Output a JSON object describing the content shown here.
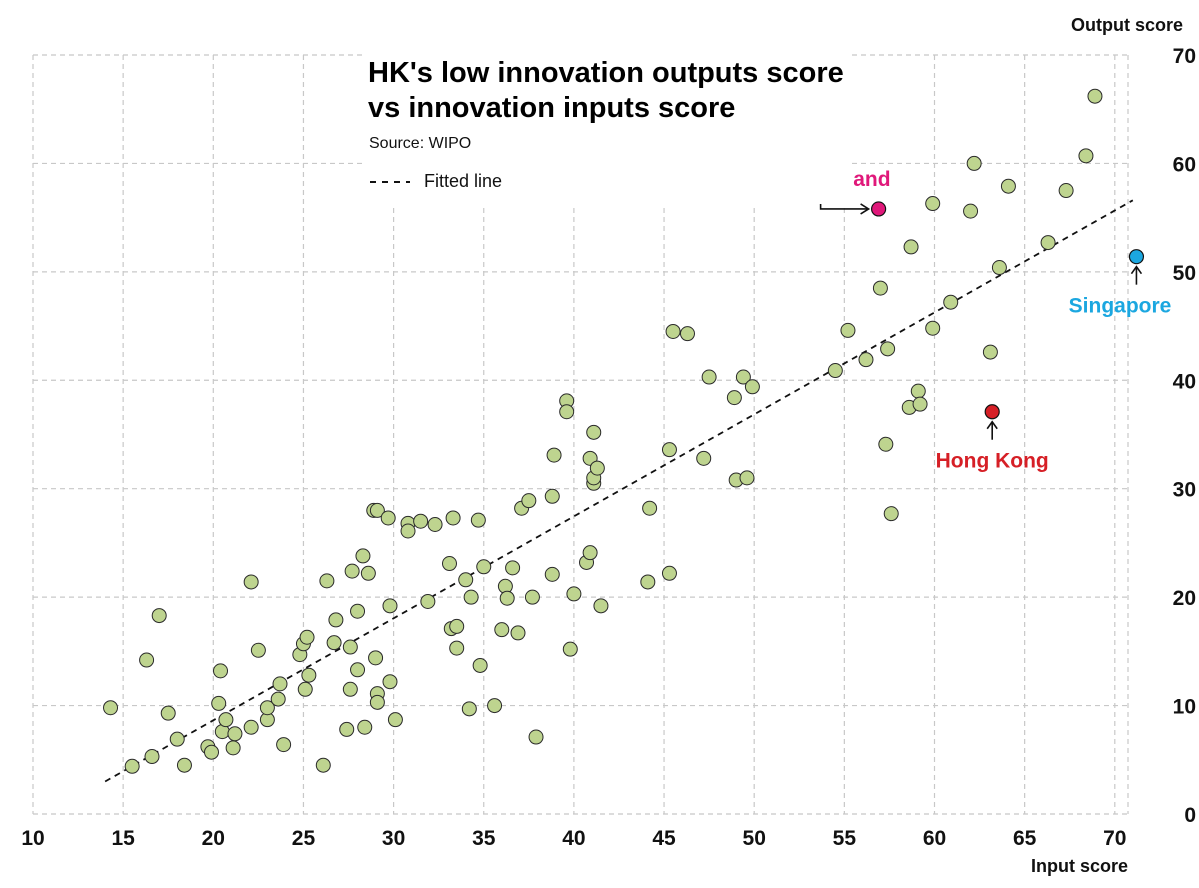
{
  "chart_data": {
    "type": "scatter",
    "title": "HK's low innovation outputs score",
    "subtitle": "vs innovation inputs score",
    "source": "Source: WIPO",
    "xlabel": "Input score",
    "ylabel": "Output score",
    "xlim": [
      10,
      72
    ],
    "ylim": [
      0,
      70
    ],
    "x_ticks": [
      10,
      15,
      20,
      25,
      30,
      35,
      40,
      45,
      50,
      55,
      60,
      65,
      70
    ],
    "y_ticks": [
      0,
      10,
      20,
      30,
      40,
      50,
      60,
      70
    ],
    "grid": true,
    "legend": {
      "label": "Fitted line",
      "placement": "top-left"
    },
    "colors": {
      "points": "#bed48f",
      "point_stroke": "#2a2a2a",
      "title": "#0d3b66",
      "fitted_line": "#111111",
      "grid": "#c8c8c8",
      "chinese_mainland": "#e0187a",
      "hong_kong": "#d61f26",
      "singapore": "#1ba7e0"
    },
    "fitted_line": {
      "x": [
        14,
        71
      ],
      "y": [
        3,
        56.6
      ]
    },
    "highlights": [
      {
        "name": "Chinese mainland",
        "x": 56.9,
        "y": 55.8,
        "color_key": "chinese_mainland",
        "arrow": "left"
      },
      {
        "name": "Hong Kong",
        "x": 63.2,
        "y": 37.1,
        "color_key": "hong_kong",
        "arrow": "below"
      },
      {
        "name": "Singapore",
        "x": 71.2,
        "y": 51.4,
        "color_key": "singapore",
        "arrow": "below"
      }
    ],
    "points": [
      [
        14.3,
        9.8
      ],
      [
        15.5,
        4.4
      ],
      [
        16.3,
        14.2
      ],
      [
        16.6,
        5.3
      ],
      [
        17.0,
        18.3
      ],
      [
        17.5,
        9.3
      ],
      [
        18.0,
        6.9
      ],
      [
        18.4,
        4.5
      ],
      [
        19.7,
        6.2
      ],
      [
        19.9,
        5.7
      ],
      [
        20.3,
        10.2
      ],
      [
        20.4,
        13.2
      ],
      [
        20.5,
        7.6
      ],
      [
        20.7,
        8.7
      ],
      [
        21.1,
        6.1
      ],
      [
        21.2,
        7.4
      ],
      [
        22.1,
        21.4
      ],
      [
        22.1,
        8.0
      ],
      [
        22.5,
        15.1
      ],
      [
        23.0,
        8.7
      ],
      [
        23.0,
        9.8
      ],
      [
        23.6,
        10.6
      ],
      [
        23.7,
        12.0
      ],
      [
        23.9,
        6.4
      ],
      [
        24.8,
        14.7
      ],
      [
        25.0,
        15.7
      ],
      [
        25.1,
        11.5
      ],
      [
        25.2,
        16.3
      ],
      [
        25.3,
        12.8
      ],
      [
        26.1,
        4.5
      ],
      [
        26.3,
        21.5
      ],
      [
        26.7,
        15.8
      ],
      [
        26.8,
        17.9
      ],
      [
        27.4,
        7.8
      ],
      [
        27.6,
        11.5
      ],
      [
        27.6,
        15.4
      ],
      [
        27.7,
        22.4
      ],
      [
        28.0,
        18.7
      ],
      [
        28.0,
        13.3
      ],
      [
        28.3,
        23.8
      ],
      [
        28.4,
        8.0
      ],
      [
        28.6,
        22.2
      ],
      [
        28.9,
        28.0
      ],
      [
        29.0,
        14.4
      ],
      [
        29.1,
        28.0
      ],
      [
        29.1,
        11.1
      ],
      [
        29.1,
        10.3
      ],
      [
        29.7,
        27.3
      ],
      [
        29.8,
        19.2
      ],
      [
        29.8,
        12.2
      ],
      [
        30.1,
        8.7
      ],
      [
        30.8,
        26.8
      ],
      [
        30.8,
        26.1
      ],
      [
        31.5,
        27.0
      ],
      [
        31.9,
        19.6
      ],
      [
        32.3,
        26.7
      ],
      [
        33.1,
        23.1
      ],
      [
        33.2,
        17.1
      ],
      [
        33.3,
        27.3
      ],
      [
        33.5,
        17.3
      ],
      [
        33.5,
        15.3
      ],
      [
        34.0,
        21.6
      ],
      [
        34.2,
        9.7
      ],
      [
        34.3,
        20.0
      ],
      [
        34.7,
        27.1
      ],
      [
        34.8,
        13.7
      ],
      [
        35.0,
        22.8
      ],
      [
        35.6,
        10.0
      ],
      [
        36.0,
        17.0
      ],
      [
        36.2,
        21.0
      ],
      [
        36.3,
        19.9
      ],
      [
        36.6,
        22.7
      ],
      [
        36.9,
        16.7
      ],
      [
        37.1,
        28.2
      ],
      [
        37.5,
        28.9
      ],
      [
        37.7,
        20.0
      ],
      [
        37.9,
        7.1
      ],
      [
        38.8,
        22.1
      ],
      [
        38.8,
        29.3
      ],
      [
        38.9,
        33.1
      ],
      [
        39.6,
        38.1
      ],
      [
        39.6,
        37.1
      ],
      [
        39.8,
        15.2
      ],
      [
        40.0,
        20.3
      ],
      [
        40.7,
        23.2
      ],
      [
        40.9,
        24.1
      ],
      [
        40.9,
        32.8
      ],
      [
        41.1,
        35.2
      ],
      [
        41.1,
        30.5
      ],
      [
        41.1,
        31.0
      ],
      [
        41.3,
        31.9
      ],
      [
        41.5,
        19.2
      ],
      [
        44.1,
        21.4
      ],
      [
        44.2,
        28.2
      ],
      [
        45.3,
        33.6
      ],
      [
        45.3,
        22.2
      ],
      [
        45.5,
        44.5
      ],
      [
        46.3,
        44.3
      ],
      [
        47.2,
        32.8
      ],
      [
        47.5,
        40.3
      ],
      [
        48.9,
        38.4
      ],
      [
        49.0,
        30.8
      ],
      [
        49.4,
        40.3
      ],
      [
        49.6,
        31.0
      ],
      [
        49.9,
        39.4
      ],
      [
        54.5,
        40.9
      ],
      [
        55.2,
        44.6
      ],
      [
        56.2,
        41.9
      ],
      [
        57.0,
        48.5
      ],
      [
        57.3,
        34.1
      ],
      [
        57.4,
        42.9
      ],
      [
        57.6,
        27.7
      ],
      [
        58.6,
        37.5
      ],
      [
        58.7,
        52.3
      ],
      [
        59.1,
        39.0
      ],
      [
        59.2,
        37.8
      ],
      [
        59.9,
        44.8
      ],
      [
        59.9,
        56.3
      ],
      [
        60.9,
        47.2
      ],
      [
        62.0,
        55.6
      ],
      [
        62.2,
        60.0
      ],
      [
        63.1,
        42.6
      ],
      [
        63.6,
        50.4
      ],
      [
        64.1,
        57.9
      ],
      [
        66.3,
        52.7
      ],
      [
        67.3,
        57.5
      ],
      [
        68.4,
        60.7
      ],
      [
        68.9,
        66.2
      ]
    ]
  }
}
